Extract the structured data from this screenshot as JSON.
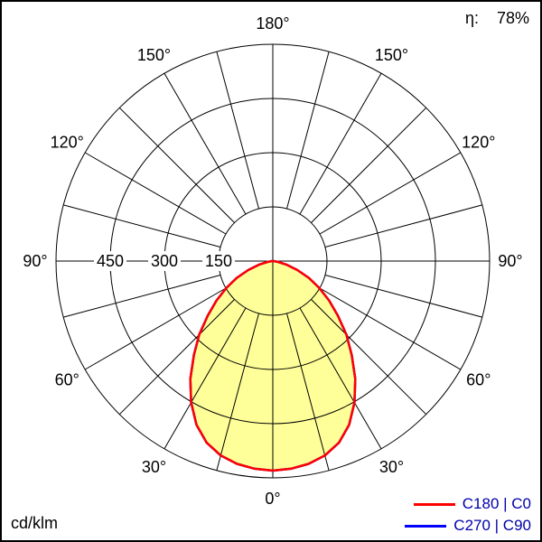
{
  "header": {
    "efficiency_label": "η:",
    "efficiency_value": "78%"
  },
  "footer": {
    "unit_label": "cd/klm"
  },
  "legend": {
    "text_color": "#0000aa",
    "items": [
      {
        "label": "C180 | C0",
        "color": "#ff0000"
      },
      {
        "label": "C270 | C90",
        "color": "#0000ff"
      }
    ]
  },
  "chart_data": {
    "type": "polar",
    "subtype": "luminous-intensity-distribution",
    "unit": "cd/klm",
    "efficiency_percent": 78,
    "grid": {
      "color": "#000000",
      "angle_step_deg": 15,
      "angle_labels_deg": [
        0,
        30,
        60,
        90,
        120,
        150,
        180
      ],
      "radial_ticks": [
        150,
        300,
        450
      ],
      "radial_max": 600
    },
    "series": [
      {
        "name": "C180 | C0",
        "stroke": "#ff0000",
        "fill": "#ffff99",
        "gamma_deg": [
          0,
          5,
          10,
          15,
          20,
          25,
          30,
          35,
          40,
          45,
          50,
          55,
          60,
          65,
          70,
          75,
          80,
          85,
          90
        ],
        "intensity_cd_klm": [
          580,
          577,
          570,
          557,
          535,
          500,
          452,
          398,
          340,
          288,
          235,
          190,
          148,
          110,
          72,
          40,
          15,
          4,
          0
        ]
      },
      {
        "name": "C270 | C90",
        "stroke": "#0000ff",
        "fill": "#ffff99",
        "gamma_deg": [
          0,
          5,
          10,
          15,
          20,
          25,
          30,
          35,
          40,
          45,
          50,
          55,
          60,
          65,
          70,
          75,
          80,
          85,
          90
        ],
        "intensity_cd_klm": [
          580,
          577,
          570,
          557,
          535,
          500,
          452,
          398,
          340,
          288,
          235,
          190,
          148,
          110,
          72,
          40,
          15,
          4,
          0
        ]
      }
    ]
  }
}
